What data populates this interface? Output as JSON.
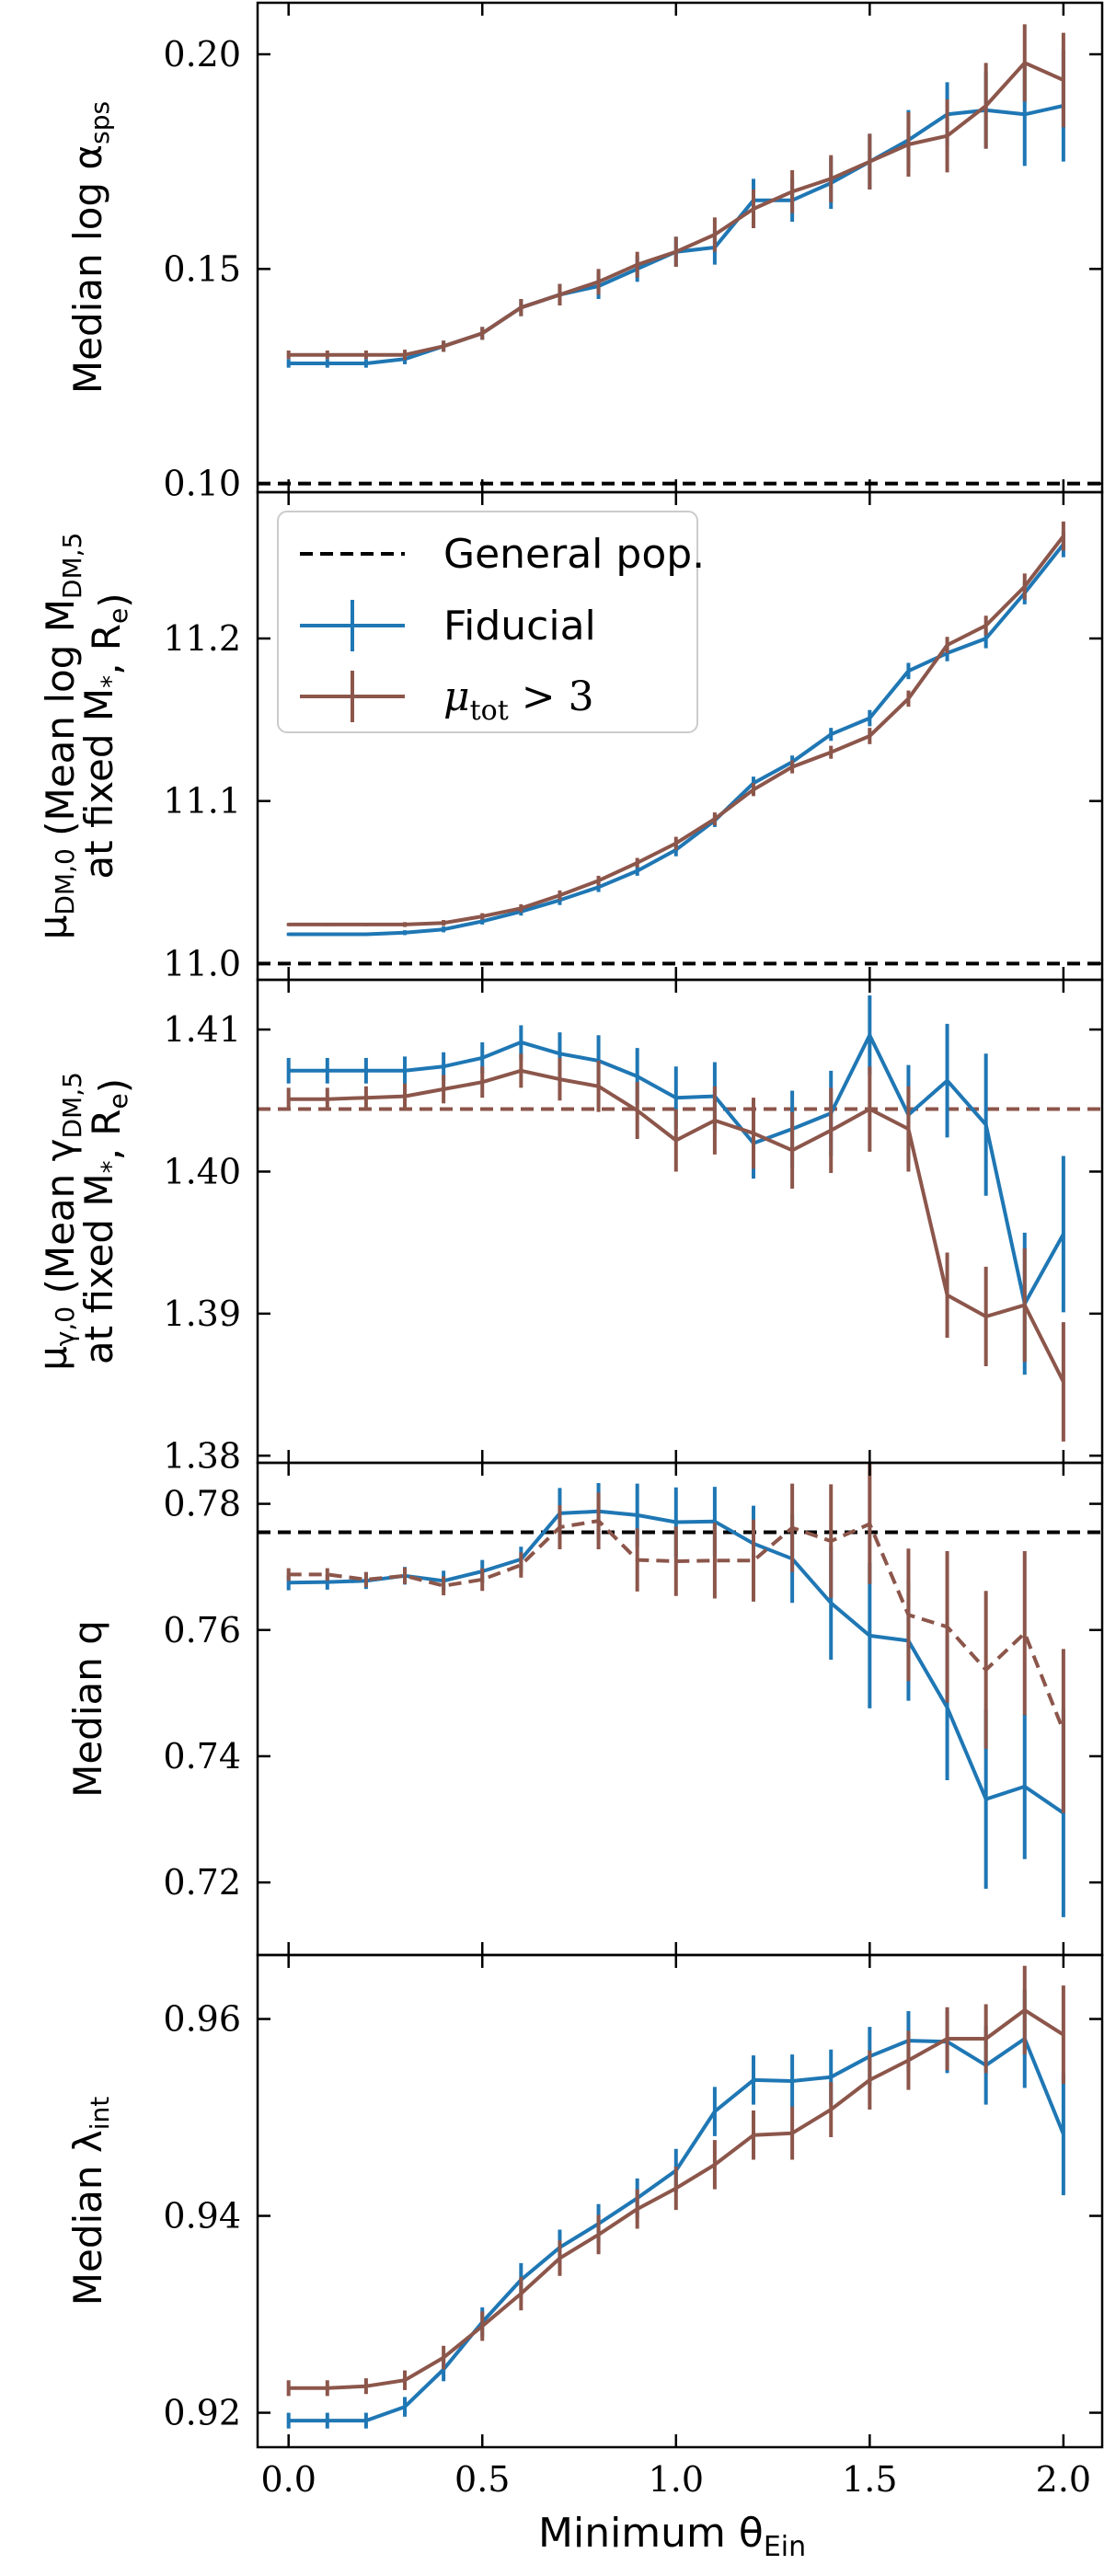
{
  "colors": {
    "fiducial": "#1f77b4",
    "mutot": "#8c564b",
    "general": "#000000"
  },
  "xlabel": {
    "main": "Minimum θ",
    "sub": "Ein"
  },
  "legend": {
    "general": "General pop.",
    "fiducial": "Fiducial",
    "mutot": {
      "main": "μ",
      "sub": "tot",
      "rest": " > 3"
    }
  },
  "chart_data": [
    {
      "type": "line",
      "ylabel_lines": [
        [
          {
            "t": "Median log α"
          },
          {
            "t": "sps",
            "sub": true
          }
        ]
      ],
      "ylim": [
        0.098,
        0.212
      ],
      "yticks": [
        0.1,
        0.15,
        0.2
      ],
      "ytick_labels": [
        "0.10",
        "0.15",
        "0.20"
      ],
      "xlim": [
        -0.08,
        2.1
      ],
      "xticks": [
        0.0,
        0.5,
        1.0,
        1.5,
        2.0
      ],
      "xtick_labels": [
        "0.0",
        "0.5",
        "1.0",
        "1.5",
        "2.0"
      ],
      "x": [
        0.0,
        0.1,
        0.2,
        0.3,
        0.4,
        0.5,
        0.6,
        0.7,
        0.8,
        0.9,
        1.0,
        1.1,
        1.2,
        1.3,
        1.4,
        1.5,
        1.6,
        1.7,
        1.8,
        1.9,
        2.0
      ],
      "reference": {
        "value": 0.1,
        "color": "#000000"
      },
      "series": [
        {
          "key": "fiducial",
          "dashed": false,
          "y": [
            0.128,
            0.128,
            0.128,
            0.129,
            0.132,
            0.135,
            0.141,
            0.144,
            0.146,
            0.15,
            0.154,
            0.155,
            0.166,
            0.166,
            0.17,
            0.175,
            0.18,
            0.186,
            0.187,
            0.186,
            0.188
          ],
          "err": [
            0.001,
            0.001,
            0.001,
            0.0012,
            0.0013,
            0.0015,
            0.002,
            0.0025,
            0.003,
            0.003,
            0.0035,
            0.004,
            0.005,
            0.005,
            0.006,
            0.0065,
            0.007,
            0.0075,
            0.009,
            0.012,
            0.013
          ]
        },
        {
          "key": "mutot",
          "dashed": false,
          "y": [
            0.13,
            0.13,
            0.13,
            0.13,
            0.132,
            0.135,
            0.141,
            0.144,
            0.147,
            0.151,
            0.154,
            0.158,
            0.164,
            0.168,
            0.171,
            0.175,
            0.179,
            0.181,
            0.188,
            0.198,
            0.194
          ],
          "err": [
            0.001,
            0.001,
            0.001,
            0.0012,
            0.0013,
            0.0015,
            0.002,
            0.0025,
            0.003,
            0.003,
            0.0035,
            0.004,
            0.0045,
            0.005,
            0.0055,
            0.0065,
            0.0075,
            0.0085,
            0.01,
            0.009,
            0.011
          ]
        }
      ]
    },
    {
      "type": "line",
      "ylabel_lines": [
        [
          {
            "t": "μ"
          },
          {
            "t": "DM,0",
            "sub": true
          },
          {
            "t": " (Mean log M"
          },
          {
            "t": "DM,5",
            "sub": true
          }
        ],
        [
          {
            "t": "at fixed M"
          },
          {
            "t": "*",
            "sub": true
          },
          {
            "t": ", R"
          },
          {
            "t": "e",
            "sub": true
          },
          {
            "t": ")"
          }
        ]
      ],
      "ylim": [
        10.99,
        11.29
      ],
      "yticks": [
        11.0,
        11.1,
        11.2
      ],
      "ytick_labels": [
        "11.0",
        "11.1",
        "11.2"
      ],
      "xlim": [
        -0.08,
        2.1
      ],
      "xticks": [
        0.0,
        0.5,
        1.0,
        1.5,
        2.0
      ],
      "xtick_labels": [
        "0.0",
        "0.5",
        "1.0",
        "1.5",
        "2.0"
      ],
      "x": [
        0.0,
        0.1,
        0.2,
        0.3,
        0.4,
        0.5,
        0.6,
        0.7,
        0.8,
        0.9,
        1.0,
        1.1,
        1.2,
        1.3,
        1.4,
        1.5,
        1.6,
        1.7,
        1.8,
        1.9,
        2.0
      ],
      "reference": {
        "value": 11.0,
        "color": "#000000"
      },
      "series": [
        {
          "key": "fiducial",
          "dashed": false,
          "y": [
            11.018,
            11.018,
            11.018,
            11.019,
            11.021,
            11.026,
            11.032,
            11.039,
            11.047,
            11.057,
            11.07,
            11.088,
            11.111,
            11.124,
            11.141,
            11.151,
            11.18,
            11.191,
            11.2,
            11.228,
            11.258
          ],
          "err": [
            0.001,
            0.001,
            0.001,
            0.0015,
            0.0018,
            0.002,
            0.0025,
            0.003,
            0.003,
            0.003,
            0.004,
            0.004,
            0.004,
            0.004,
            0.004,
            0.005,
            0.005,
            0.005,
            0.006,
            0.007,
            0.008
          ]
        },
        {
          "key": "mutot",
          "dashed": false,
          "y": [
            11.024,
            11.024,
            11.024,
            11.024,
            11.025,
            11.029,
            11.034,
            11.042,
            11.051,
            11.062,
            11.074,
            11.089,
            11.107,
            11.121,
            11.13,
            11.14,
            11.163,
            11.196,
            11.208,
            11.232,
            11.263
          ],
          "err": [
            0.001,
            0.001,
            0.001,
            0.0015,
            0.0018,
            0.002,
            0.0025,
            0.003,
            0.003,
            0.003,
            0.004,
            0.004,
            0.004,
            0.004,
            0.004,
            0.005,
            0.005,
            0.005,
            0.006,
            0.008,
            0.009
          ]
        }
      ]
    },
    {
      "type": "line",
      "ylabel_lines": [
        [
          {
            "t": "μ"
          },
          {
            "t": "γ,0",
            "sub": true
          },
          {
            "t": " (Mean γ"
          },
          {
            "t": "DM,5",
            "sub": true
          }
        ],
        [
          {
            "t": "at fixed M"
          },
          {
            "t": "*",
            "sub": true
          },
          {
            "t": ", R"
          },
          {
            "t": "e",
            "sub": true
          },
          {
            "t": ")"
          }
        ]
      ],
      "ylim": [
        1.3795,
        1.4135
      ],
      "yticks": [
        1.38,
        1.39,
        1.4,
        1.41
      ],
      "ytick_labels": [
        "1.38",
        "1.39",
        "1.40",
        "1.41"
      ],
      "xlim": [
        -0.08,
        2.1
      ],
      "xticks": [
        0.0,
        0.5,
        1.0,
        1.5,
        2.0
      ],
      "xtick_labels": [
        "0.0",
        "0.5",
        "1.0",
        "1.5",
        "2.0"
      ],
      "x": [
        0.0,
        0.1,
        0.2,
        0.3,
        0.4,
        0.5,
        0.6,
        0.7,
        0.8,
        0.9,
        1.0,
        1.1,
        1.2,
        1.3,
        1.4,
        1.5,
        1.6,
        1.7,
        1.8,
        1.9,
        2.0
      ],
      "reference": {
        "value": 1.4044,
        "color": "#8c564b"
      },
      "series": [
        {
          "key": "fiducial",
          "dashed": false,
          "y": [
            1.4071,
            1.4071,
            1.4071,
            1.4071,
            1.4074,
            1.408,
            1.4091,
            1.4083,
            1.4078,
            1.4067,
            1.4052,
            1.4053,
            1.402,
            1.403,
            1.4041,
            1.4096,
            1.404,
            1.4064,
            1.4033,
            1.3907,
            1.3956
          ],
          "err": [
            0.0009,
            0.0009,
            0.0009,
            0.001,
            0.001,
            0.0011,
            0.0012,
            0.0015,
            0.0018,
            0.002,
            0.0022,
            0.0024,
            0.0025,
            0.0027,
            0.003,
            0.0028,
            0.0035,
            0.004,
            0.005,
            0.005,
            0.0055
          ]
        },
        {
          "key": "mutot",
          "dashed": false,
          "y": [
            1.4051,
            1.4051,
            1.4052,
            1.4053,
            1.4058,
            1.4063,
            1.4071,
            1.4065,
            1.406,
            1.4043,
            1.4022,
            1.4036,
            1.4027,
            1.4015,
            1.4029,
            1.4044,
            1.403,
            1.3913,
            1.3898,
            1.3906,
            1.3852
          ],
          "err": [
            0.0008,
            0.0008,
            0.0008,
            0.0009,
            0.001,
            0.0011,
            0.0012,
            0.0015,
            0.0018,
            0.002,
            0.0022,
            0.0024,
            0.0025,
            0.0027,
            0.003,
            0.003,
            0.003,
            0.003,
            0.0035,
            0.004,
            0.0042
          ]
        }
      ]
    },
    {
      "type": "line",
      "ylabel_lines": [
        [
          {
            "t": "Median q"
          }
        ]
      ],
      "ylim": [
        0.7085,
        0.7865
      ],
      "yticks": [
        0.72,
        0.74,
        0.76,
        0.78
      ],
      "ytick_labels": [
        "0.72",
        "0.74",
        "0.76",
        "0.78"
      ],
      "xlim": [
        -0.08,
        2.1
      ],
      "xticks": [
        0.0,
        0.5,
        1.0,
        1.5,
        2.0
      ],
      "xtick_labels": [
        "0.0",
        "0.5",
        "1.0",
        "1.5",
        "2.0"
      ],
      "x": [
        0.0,
        0.1,
        0.2,
        0.3,
        0.4,
        0.5,
        0.6,
        0.7,
        0.8,
        0.9,
        1.0,
        1.1,
        1.2,
        1.3,
        1.4,
        1.5,
        1.6,
        1.7,
        1.8,
        1.9,
        2.0
      ],
      "reference": {
        "value": 0.7755,
        "color": "#000000"
      },
      "series": [
        {
          "key": "fiducial",
          "dashed": false,
          "y": [
            0.7675,
            0.7676,
            0.7678,
            0.7686,
            0.7678,
            0.7693,
            0.7712,
            0.7785,
            0.7788,
            0.7782,
            0.7771,
            0.7772,
            0.7737,
            0.7713,
            0.7643,
            0.7591,
            0.7583,
            0.7477,
            0.7332,
            0.7352,
            0.731
          ],
          "err": [
            0.0012,
            0.0012,
            0.0013,
            0.0014,
            0.0016,
            0.0018,
            0.002,
            0.004,
            0.0045,
            0.005,
            0.0055,
            0.0055,
            0.006,
            0.007,
            0.009,
            0.0115,
            0.0095,
            0.0115,
            0.0142,
            0.0115,
            0.0165
          ]
        },
        {
          "key": "mutot",
          "dashed": true,
          "y": [
            0.7688,
            0.7688,
            0.768,
            0.7686,
            0.767,
            0.768,
            0.7703,
            0.7763,
            0.7773,
            0.7711,
            0.7709,
            0.771,
            0.771,
            0.7762,
            0.7741,
            0.7768,
            0.7624,
            0.7605,
            0.7537,
            0.7595,
            0.744
          ],
          "err": [
            0.001,
            0.001,
            0.0012,
            0.0013,
            0.0015,
            0.0018,
            0.002,
            0.0035,
            0.0045,
            0.005,
            0.0055,
            0.006,
            0.0065,
            0.007,
            0.009,
            0.0095,
            0.0105,
            0.012,
            0.0125,
            0.013,
            0.013
          ]
        }
      ]
    },
    {
      "type": "line",
      "ylabel_lines": [
        [
          {
            "t": "Median λ"
          },
          {
            "t": "int",
            "sub": true
          }
        ]
      ],
      "ylim": [
        0.9165,
        0.9665
      ],
      "yticks": [
        0.92,
        0.94,
        0.96
      ],
      "ytick_labels": [
        "0.92",
        "0.94",
        "0.96"
      ],
      "xlim": [
        -0.08,
        2.1
      ],
      "xticks": [
        0.0,
        0.5,
        1.0,
        1.5,
        2.0
      ],
      "xtick_labels": [
        "0.0",
        "0.5",
        "1.0",
        "1.5",
        "2.0"
      ],
      "x": [
        0.0,
        0.1,
        0.2,
        0.3,
        0.4,
        0.5,
        0.6,
        0.7,
        0.8,
        0.9,
        1.0,
        1.1,
        1.2,
        1.3,
        1.4,
        1.5,
        1.6,
        1.7,
        1.8,
        1.9,
        2.0
      ],
      "reference": null,
      "series": [
        {
          "key": "fiducial",
          "dashed": false,
          "y": [
            0.9192,
            0.9192,
            0.9192,
            0.9206,
            0.9244,
            0.9292,
            0.9335,
            0.9368,
            0.9392,
            0.9418,
            0.9446,
            0.9506,
            0.9538,
            0.9537,
            0.9541,
            0.9562,
            0.9578,
            0.9577,
            0.9553,
            0.958,
            0.9483
          ],
          "err": [
            0.0008,
            0.0008,
            0.0008,
            0.001,
            0.0012,
            0.0015,
            0.0017,
            0.0018,
            0.002,
            0.002,
            0.0022,
            0.0025,
            0.0025,
            0.0027,
            0.0028,
            0.003,
            0.003,
            0.0032,
            0.004,
            0.005,
            0.0062
          ]
        },
        {
          "key": "mutot",
          "dashed": false,
          "y": [
            0.9225,
            0.9225,
            0.9227,
            0.9233,
            0.9256,
            0.9288,
            0.9321,
            0.9357,
            0.9381,
            0.9407,
            0.9428,
            0.9452,
            0.9482,
            0.9484,
            0.9508,
            0.9538,
            0.9558,
            0.958,
            0.958,
            0.9609,
            0.9584
          ],
          "err": [
            0.0008,
            0.0008,
            0.0008,
            0.001,
            0.0012,
            0.0015,
            0.0017,
            0.0018,
            0.002,
            0.002,
            0.0022,
            0.0025,
            0.0025,
            0.0027,
            0.0028,
            0.003,
            0.003,
            0.0032,
            0.0035,
            0.0045,
            0.005
          ]
        }
      ]
    }
  ]
}
